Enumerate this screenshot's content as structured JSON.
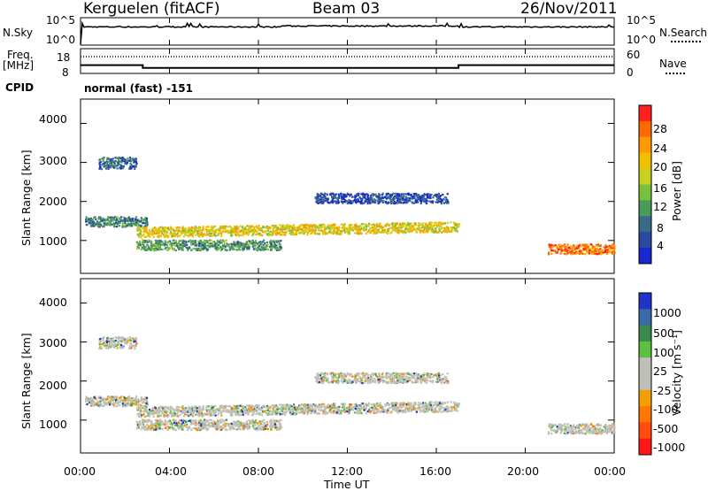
{
  "header": {
    "site": "Kerguelen (fitACF)",
    "beam": "Beam 03",
    "date": "26/Nov/2011"
  },
  "noise_panel": {
    "left_label": "N.Sky",
    "right_label": "N.Search",
    "left_ticks": [
      "10^5",
      "10^0"
    ],
    "right_ticks": [
      "10^5",
      "10^0"
    ]
  },
  "freq_panel": {
    "left_label_line1": "Freq.",
    "left_label_line2": "[MHz]",
    "left_ticks": [
      "18",
      "8"
    ],
    "right_label": "Nave",
    "right_ticks": [
      "60",
      "0"
    ]
  },
  "cpid": {
    "label": "CPID",
    "value": "normal (fast) -151"
  },
  "power_panel": {
    "ylabel": "Slant Range [km]",
    "yticks": [
      "4000",
      "3000",
      "2000",
      "1000"
    ],
    "colorbar_title": "Power [dB]",
    "colorbar_labels": [
      "28",
      "24",
      "20",
      "16",
      "12",
      "8",
      "4"
    ],
    "colorbar_colors": [
      "#ff2020",
      "#ff6a00",
      "#ff9a00",
      "#f0c000",
      "#c8d020",
      "#78c040",
      "#4a9a5a",
      "#3a6a8a",
      "#2a4aa0",
      "#1a28d0"
    ]
  },
  "velocity_panel": {
    "ylabel": "Slant Range [km]",
    "yticks": [
      "4000",
      "3000",
      "2000",
      "1000"
    ],
    "colorbar_title": "Velocity [m s⁻¹]",
    "colorbar_labels": [
      "1000",
      "500",
      "100",
      "25",
      "-25",
      "-100",
      "-500",
      "-1000"
    ],
    "colorbar_colors": [
      "#2035c8",
      "#3a6aa8",
      "#3a8a50",
      "#5ac040",
      "#c0c0b8",
      "#c0c0b8",
      "#f0a000",
      "#ff7800",
      "#ff4a10",
      "#ff1818"
    ]
  },
  "xaxis": {
    "title": "Time UT",
    "ticks": [
      "00:00",
      "04:00",
      "08:00",
      "12:00",
      "16:00",
      "20:00",
      "00:00"
    ]
  },
  "chart_data": {
    "type": "heatmap",
    "title": "Kerguelen (fitACF) Beam 03 26/Nov/2011",
    "xlabel": "Time UT",
    "ylabel": "Slant Range [km]",
    "xlim_hours": [
      0,
      24
    ],
    "ylim_km": [
      180,
      4600
    ],
    "freq_mhz_segments": [
      {
        "start_hour": 0,
        "end_hour": 2.8,
        "freq": 12
      },
      {
        "start_hour": 2.8,
        "end_hour": 17.0,
        "freq": 10
      },
      {
        "start_hour": 17.0,
        "end_hour": 24,
        "freq": 12
      }
    ],
    "power_echo_bands": [
      {
        "start_hour": 0.2,
        "end_hour": 3.0,
        "range_km": 1500,
        "power_db": 10
      },
      {
        "start_hour": 2.5,
        "end_hour": 17.0,
        "range_km": 1300,
        "power_db": 20
      },
      {
        "start_hour": 2.5,
        "end_hour": 9.0,
        "range_km": 900,
        "power_db": 12
      },
      {
        "start_hour": 0.8,
        "end_hour": 2.5,
        "range_km": 3000,
        "power_db": 8
      },
      {
        "start_hour": 10.5,
        "end_hour": 16.5,
        "range_km": 2100,
        "power_db": 6
      },
      {
        "start_hour": 21.0,
        "end_hour": 24.0,
        "range_km": 800,
        "power_db": 26
      }
    ]
  }
}
